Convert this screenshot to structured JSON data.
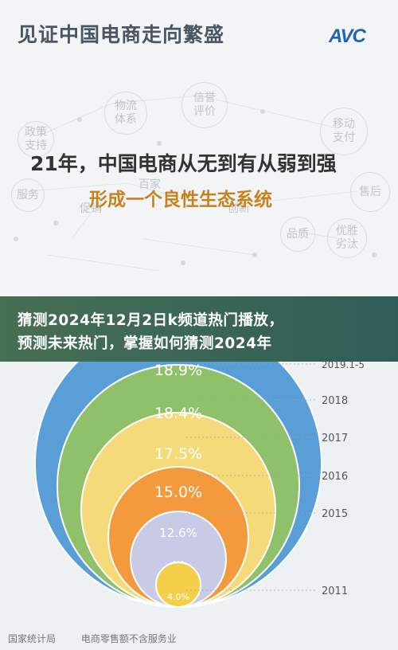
{
  "header": {
    "title": "见证中国电商走向繁盛",
    "logo_text": "AVC"
  },
  "bubbles": [
    {
      "text": "政策\n支持"
    },
    {
      "text": "物流\n体系"
    },
    {
      "text": "信誉\n评价"
    },
    {
      "text": "移动\n支付"
    },
    {
      "text": "服务"
    },
    {
      "text": "百家"
    },
    {
      "text": "售后"
    },
    {
      "text": "品质"
    },
    {
      "text": "优胜\n劣汰"
    },
    {
      "text": "促销"
    },
    {
      "text": "创新"
    }
  ],
  "headline": {
    "line1": "21年，中国电商从无到有从弱到强",
    "line2": "形成一个良性生态系统"
  },
  "overlay": {
    "line1": "猜测2024年12月2日k频道热门播放，",
    "line2": "预测未来热门，掌握如何猜测2024年"
  },
  "chart_data": {
    "type": "area",
    "categories": [
      "2011",
      "2015",
      "2016",
      "2017",
      "2018",
      "2019.1-5"
    ],
    "values": [
      "4.0%",
      "12.6%",
      "15.0%",
      "17.5%",
      "18.4%",
      "18.9%"
    ],
    "colors": [
      "#f4d04a",
      "#c9cbe6",
      "#f39a3c",
      "#f5da7a",
      "#8fc16b",
      "#5a9ed8"
    ],
    "ellipsis": "...",
    "annotations": [
      "国家统计局",
      "电商零售额不含服务业"
    ]
  },
  "footer": {
    "source": "国家统计局",
    "note": "电商零售额不含服务业"
  }
}
